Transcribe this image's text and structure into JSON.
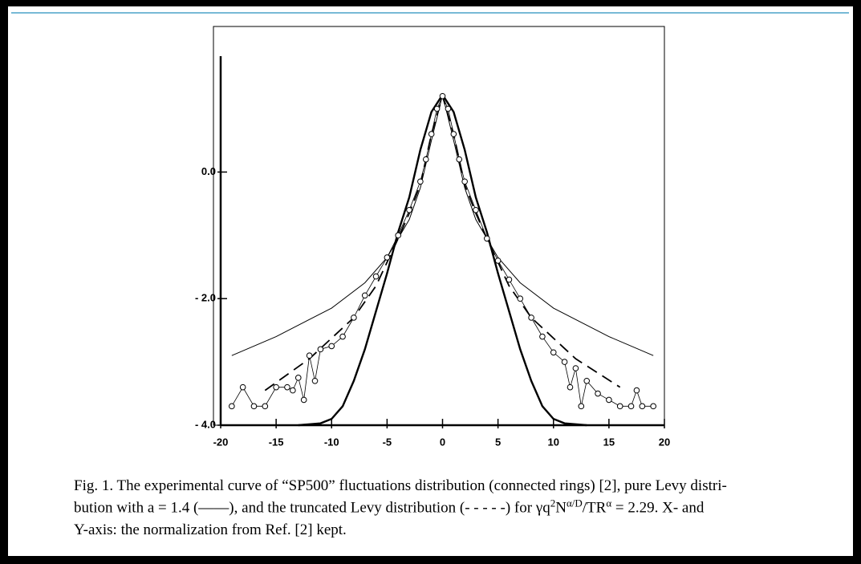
{
  "chart_data": {
    "type": "line",
    "xlim": [
      -20,
      20
    ],
    "xticks": [
      -20,
      -15,
      -10,
      -5,
      0,
      5,
      10,
      15,
      20
    ],
    "ylim": [
      -4,
      2.3
    ],
    "yticks": [
      {
        "value": 0,
        "label": "0.0"
      },
      {
        "value": -2,
        "label": "- 2.0"
      },
      {
        "value": -4,
        "label": "- 4.0"
      }
    ],
    "series": [
      {
        "color": "#000000",
        "line_width": 2.4,
        "dash": false,
        "markers": false,
        "x": [
          -13,
          -11,
          -10,
          -9,
          -8,
          -7,
          -6,
          -5,
          -4,
          -3,
          -2,
          -1,
          0,
          1,
          2,
          3,
          4,
          5,
          6,
          7,
          8,
          9,
          10,
          11,
          13
        ],
        "values": [
          -4.0,
          -3.97,
          -3.9,
          -3.7,
          -3.3,
          -2.8,
          -2.2,
          -1.6,
          -0.95,
          -0.4,
          0.35,
          0.95,
          1.22,
          0.95,
          0.35,
          -0.4,
          -0.95,
          -1.6,
          -2.2,
          -2.8,
          -3.3,
          -3.7,
          -3.9,
          -3.97,
          -4.0
        ]
      },
      {
        "color": "#000000",
        "line_width": 1,
        "dash": false,
        "markers": false,
        "x": [
          -19,
          -15,
          -10,
          -7,
          -5,
          -3,
          -2,
          -1,
          0,
          1,
          2,
          3,
          5,
          7,
          10,
          15,
          19
        ],
        "values": [
          -2.9,
          -2.6,
          -2.15,
          -1.75,
          -1.35,
          -0.75,
          -0.25,
          0.5,
          1.22,
          0.5,
          -0.25,
          -0.75,
          -1.35,
          -1.75,
          -2.15,
          -2.6,
          -2.9
        ]
      },
      {
        "color": "#000000",
        "line_width": 1.8,
        "dash": true,
        "markers": false,
        "x": [
          -16,
          -12,
          -8,
          -6,
          -4,
          -3,
          -2,
          -1,
          0,
          1,
          2,
          3,
          4,
          6,
          8,
          12,
          16
        ],
        "values": [
          -3.45,
          -2.95,
          -2.3,
          -1.8,
          -1.05,
          -0.65,
          -0.2,
          0.6,
          1.2,
          0.6,
          -0.2,
          -0.65,
          -1.05,
          -1.8,
          -2.3,
          -2.95,
          -3.4
        ]
      },
      {
        "color": "#000000",
        "line_width": 0.8,
        "dash": false,
        "markers": true,
        "x": [
          -19,
          -18,
          -17,
          -16,
          -15,
          -14,
          -13.5,
          -13,
          -12.5,
          -12,
          -11.5,
          -11,
          -10,
          -9,
          -8,
          -7,
          -6,
          -5,
          -4,
          -3,
          -2,
          -1.5,
          -1,
          -0.5,
          0,
          0.5,
          1,
          1.5,
          2,
          3,
          4,
          5,
          6,
          7,
          8,
          9,
          10,
          11,
          11.5,
          12,
          12.5,
          13,
          14,
          15,
          16,
          17,
          17.5,
          18,
          19
        ],
        "values": [
          -3.7,
          -3.4,
          -3.7,
          -3.7,
          -3.4,
          -3.4,
          -3.45,
          -3.25,
          -3.6,
          -2.9,
          -3.3,
          -2.8,
          -2.75,
          -2.6,
          -2.3,
          -1.95,
          -1.65,
          -1.35,
          -1.0,
          -0.6,
          -0.15,
          0.2,
          0.6,
          1.0,
          1.2,
          1.0,
          0.6,
          0.2,
          -0.15,
          -0.6,
          -1.05,
          -1.4,
          -1.7,
          -2.0,
          -2.3,
          -2.6,
          -2.85,
          -3.0,
          -3.4,
          -3.1,
          -3.7,
          -3.3,
          -3.5,
          -3.6,
          -3.7,
          -3.7,
          -3.45,
          -3.7,
          -3.7
        ]
      }
    ]
  },
  "caption": {
    "lines": [
      "Fig. 1. The experimental curve of “SP500” fluctuations distribution (connected rings) [2], pure Levy distri-",
      [
        "bution with a = 1.4 (——), and the truncated Levy distribution (- - - - -) for γq",
        "2",
        "N",
        "α/D",
        "/TR",
        "α",
        " = 2.29. X- and"
      ],
      "Y-axis: the normalization from Ref. [2] kept."
    ]
  }
}
